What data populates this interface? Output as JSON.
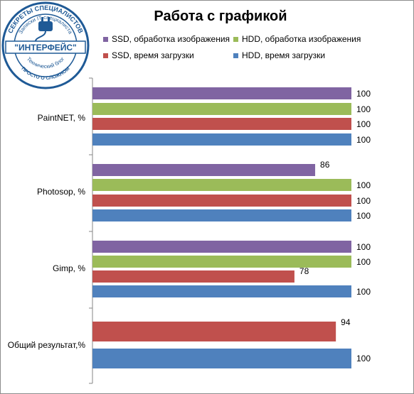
{
  "chart_data": {
    "type": "bar",
    "orientation": "horizontal",
    "title": "Работа с графикой",
    "categories": [
      "PaintNET, %",
      "Photosop, %",
      "Gimp, %",
      "Общий результат,%"
    ],
    "series": [
      {
        "name": "SSD, обработка изображения",
        "color": "#8064a2",
        "values": [
          100,
          86,
          100,
          null
        ]
      },
      {
        "name": "HDD, обработка изображения",
        "color": "#9bbb59",
        "values": [
          100,
          100,
          100,
          null
        ]
      },
      {
        "name": "SSD, время загрузки",
        "color": "#c0504d",
        "values": [
          100,
          100,
          78,
          94
        ]
      },
      {
        "name": "HDD, время загрузки",
        "color": "#4f81bd",
        "values": [
          100,
          100,
          100,
          100
        ]
      }
    ],
    "xlim": [
      0,
      100
    ],
    "grid": false,
    "legend": "top"
  },
  "logo": {
    "ring_top": "СЕКРЕТЫ СПЕЦИАЛИСТОВ",
    "ring_inner": "Записки IT-специалиста",
    "name": "\"ИНТЕРФЕЙС\"",
    "ring_blog": "Технический блог",
    "ring_bottom": "ПРОСТО О СЛОЖНОМ",
    "color": "#1f5a96"
  }
}
